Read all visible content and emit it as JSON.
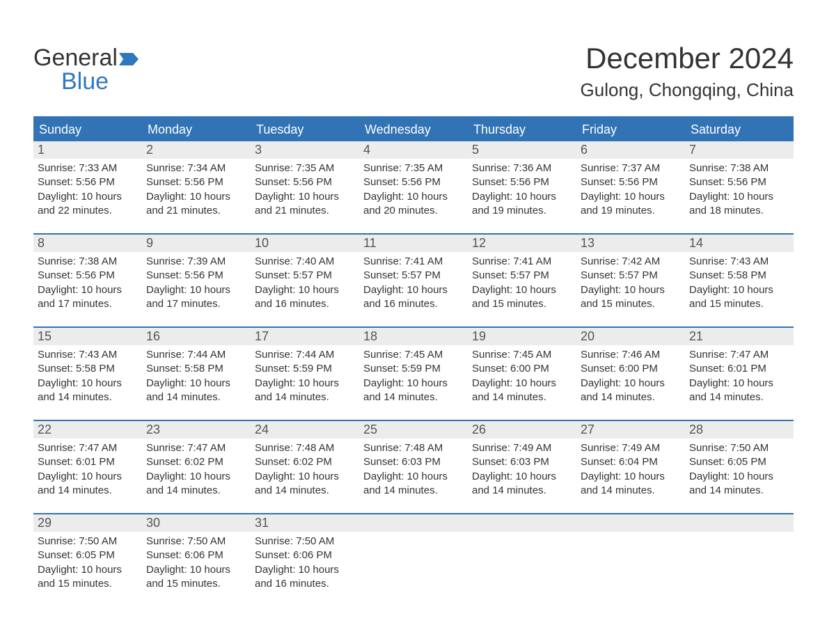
{
  "brand": {
    "general": "General",
    "blue": "Blue",
    "flag_color": "#2f78bf"
  },
  "title": {
    "month": "December 2024",
    "location": "Gulong, Chongqing, China"
  },
  "colors": {
    "header_bg": "#3173b5",
    "header_text": "#ffffff",
    "daynum_bg": "#ececec",
    "daynum_text": "#555555",
    "body_text": "#333333",
    "rule": "#3173b5"
  },
  "weekdays": [
    "Sunday",
    "Monday",
    "Tuesday",
    "Wednesday",
    "Thursday",
    "Friday",
    "Saturday"
  ],
  "label_sunrise": "Sunrise:",
  "label_sunset": "Sunset:",
  "label_daylight": "Daylight:",
  "weeks": [
    [
      {
        "n": "1",
        "sunrise": "7:33 AM",
        "sunset": "5:56 PM",
        "daylight": "10 hours and 22 minutes."
      },
      {
        "n": "2",
        "sunrise": "7:34 AM",
        "sunset": "5:56 PM",
        "daylight": "10 hours and 21 minutes."
      },
      {
        "n": "3",
        "sunrise": "7:35 AM",
        "sunset": "5:56 PM",
        "daylight": "10 hours and 21 minutes."
      },
      {
        "n": "4",
        "sunrise": "7:35 AM",
        "sunset": "5:56 PM",
        "daylight": "10 hours and 20 minutes."
      },
      {
        "n": "5",
        "sunrise": "7:36 AM",
        "sunset": "5:56 PM",
        "daylight": "10 hours and 19 minutes."
      },
      {
        "n": "6",
        "sunrise": "7:37 AM",
        "sunset": "5:56 PM",
        "daylight": "10 hours and 19 minutes."
      },
      {
        "n": "7",
        "sunrise": "7:38 AM",
        "sunset": "5:56 PM",
        "daylight": "10 hours and 18 minutes."
      }
    ],
    [
      {
        "n": "8",
        "sunrise": "7:38 AM",
        "sunset": "5:56 PM",
        "daylight": "10 hours and 17 minutes."
      },
      {
        "n": "9",
        "sunrise": "7:39 AM",
        "sunset": "5:56 PM",
        "daylight": "10 hours and 17 minutes."
      },
      {
        "n": "10",
        "sunrise": "7:40 AM",
        "sunset": "5:57 PM",
        "daylight": "10 hours and 16 minutes."
      },
      {
        "n": "11",
        "sunrise": "7:41 AM",
        "sunset": "5:57 PM",
        "daylight": "10 hours and 16 minutes."
      },
      {
        "n": "12",
        "sunrise": "7:41 AM",
        "sunset": "5:57 PM",
        "daylight": "10 hours and 15 minutes."
      },
      {
        "n": "13",
        "sunrise": "7:42 AM",
        "sunset": "5:57 PM",
        "daylight": "10 hours and 15 minutes."
      },
      {
        "n": "14",
        "sunrise": "7:43 AM",
        "sunset": "5:58 PM",
        "daylight": "10 hours and 15 minutes."
      }
    ],
    [
      {
        "n": "15",
        "sunrise": "7:43 AM",
        "sunset": "5:58 PM",
        "daylight": "10 hours and 14 minutes."
      },
      {
        "n": "16",
        "sunrise": "7:44 AM",
        "sunset": "5:58 PM",
        "daylight": "10 hours and 14 minutes."
      },
      {
        "n": "17",
        "sunrise": "7:44 AM",
        "sunset": "5:59 PM",
        "daylight": "10 hours and 14 minutes."
      },
      {
        "n": "18",
        "sunrise": "7:45 AM",
        "sunset": "5:59 PM",
        "daylight": "10 hours and 14 minutes."
      },
      {
        "n": "19",
        "sunrise": "7:45 AM",
        "sunset": "6:00 PM",
        "daylight": "10 hours and 14 minutes."
      },
      {
        "n": "20",
        "sunrise": "7:46 AM",
        "sunset": "6:00 PM",
        "daylight": "10 hours and 14 minutes."
      },
      {
        "n": "21",
        "sunrise": "7:47 AM",
        "sunset": "6:01 PM",
        "daylight": "10 hours and 14 minutes."
      }
    ],
    [
      {
        "n": "22",
        "sunrise": "7:47 AM",
        "sunset": "6:01 PM",
        "daylight": "10 hours and 14 minutes."
      },
      {
        "n": "23",
        "sunrise": "7:47 AM",
        "sunset": "6:02 PM",
        "daylight": "10 hours and 14 minutes."
      },
      {
        "n": "24",
        "sunrise": "7:48 AM",
        "sunset": "6:02 PM",
        "daylight": "10 hours and 14 minutes."
      },
      {
        "n": "25",
        "sunrise": "7:48 AM",
        "sunset": "6:03 PM",
        "daylight": "10 hours and 14 minutes."
      },
      {
        "n": "26",
        "sunrise": "7:49 AM",
        "sunset": "6:03 PM",
        "daylight": "10 hours and 14 minutes."
      },
      {
        "n": "27",
        "sunrise": "7:49 AM",
        "sunset": "6:04 PM",
        "daylight": "10 hours and 14 minutes."
      },
      {
        "n": "28",
        "sunrise": "7:50 AM",
        "sunset": "6:05 PM",
        "daylight": "10 hours and 14 minutes."
      }
    ],
    [
      {
        "n": "29",
        "sunrise": "7:50 AM",
        "sunset": "6:05 PM",
        "daylight": "10 hours and 15 minutes."
      },
      {
        "n": "30",
        "sunrise": "7:50 AM",
        "sunset": "6:06 PM",
        "daylight": "10 hours and 15 minutes."
      },
      {
        "n": "31",
        "sunrise": "7:50 AM",
        "sunset": "6:06 PM",
        "daylight": "10 hours and 16 minutes."
      },
      null,
      null,
      null,
      null
    ]
  ]
}
